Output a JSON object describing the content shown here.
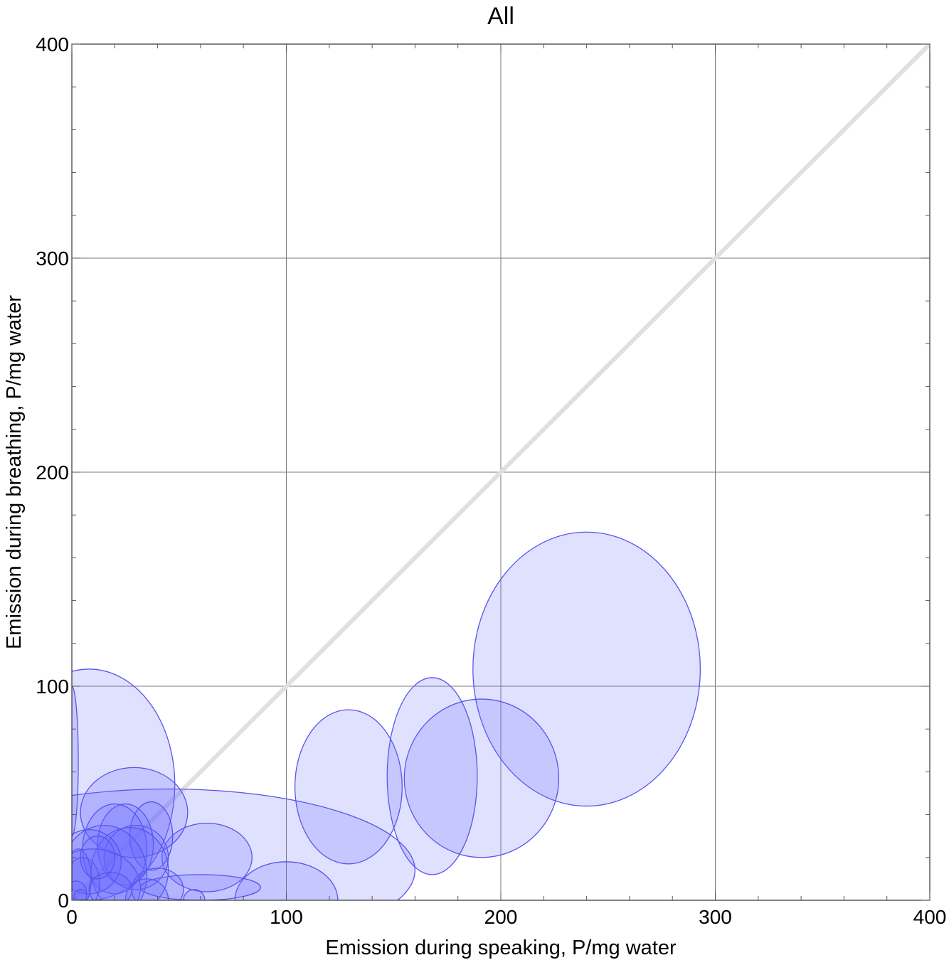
{
  "chart_data": {
    "type": "scatter",
    "title": "All",
    "xlabel": "Emission during speaking,   P/mg water",
    "ylabel": "Emission during breathing,   P/mg water",
    "xlim": [
      0,
      400
    ],
    "ylim": [
      0,
      400
    ],
    "xticks": [
      "0",
      "100",
      "200",
      "300",
      "400"
    ],
    "yticks": [
      "0",
      "100",
      "200",
      "300",
      "400"
    ],
    "grid": true,
    "reference_line": {
      "from": [
        0,
        0
      ],
      "to": [
        400,
        400
      ],
      "color": "#e0e0e0"
    },
    "colors": {
      "fill": "#6666ff",
      "fill_opacity": 0.2,
      "stroke": "#5555ee"
    },
    "ellipses": [
      {
        "x": 240,
        "y": 108,
        "rx": 53,
        "ry": 64
      },
      {
        "x": 191,
        "y": 57,
        "rx": 36,
        "ry": 37
      },
      {
        "x": 168,
        "y": 58,
        "rx": 21,
        "ry": 46
      },
      {
        "x": 129,
        "y": 53,
        "rx": 25,
        "ry": 36
      },
      {
        "x": 8,
        "y": 54,
        "rx": 40,
        "ry": 54
      },
      {
        "x": 0,
        "y": 65,
        "rx": 3,
        "ry": 35
      },
      {
        "x": 45,
        "y": 14,
        "rx": 115,
        "ry": 38
      },
      {
        "x": 100,
        "y": 0,
        "rx": 24,
        "ry": 18
      },
      {
        "x": 63,
        "y": 20,
        "rx": 21,
        "ry": 16
      },
      {
        "x": 29,
        "y": 41,
        "rx": 25,
        "ry": 21
      },
      {
        "x": 37,
        "y": 30,
        "rx": 10,
        "ry": 16
      },
      {
        "x": 25,
        "y": 26,
        "rx": 13,
        "ry": 19
      },
      {
        "x": 20,
        "y": 24,
        "rx": 15,
        "ry": 21
      },
      {
        "x": 30,
        "y": 20,
        "rx": 15,
        "ry": 15
      },
      {
        "x": 27,
        "y": 14,
        "rx": 18,
        "ry": 20
      },
      {
        "x": 15,
        "y": 12,
        "rx": 20,
        "ry": 23
      },
      {
        "x": 8,
        "y": 18,
        "rx": 15,
        "ry": 15
      },
      {
        "x": 10,
        "y": 6,
        "rx": 22,
        "ry": 18
      },
      {
        "x": 60,
        "y": 6,
        "rx": 28,
        "ry": 6
      },
      {
        "x": 5,
        "y": 8,
        "rx": 8,
        "ry": 12
      },
      {
        "x": 3,
        "y": 10,
        "rx": 6,
        "ry": 14
      },
      {
        "x": 40,
        "y": 5,
        "rx": 12,
        "ry": 10
      },
      {
        "x": 35,
        "y": 0,
        "rx": 10,
        "ry": 10
      },
      {
        "x": 18,
        "y": 5,
        "rx": 10,
        "ry": 8
      },
      {
        "x": 2,
        "y": 3,
        "rx": 5,
        "ry": 6
      },
      {
        "x": 4,
        "y": 2,
        "rx": 3,
        "ry": 3
      },
      {
        "x": 57,
        "y": 0,
        "rx": 5,
        "ry": 5
      },
      {
        "x": 12,
        "y": 20,
        "rx": 8,
        "ry": 10
      }
    ]
  }
}
